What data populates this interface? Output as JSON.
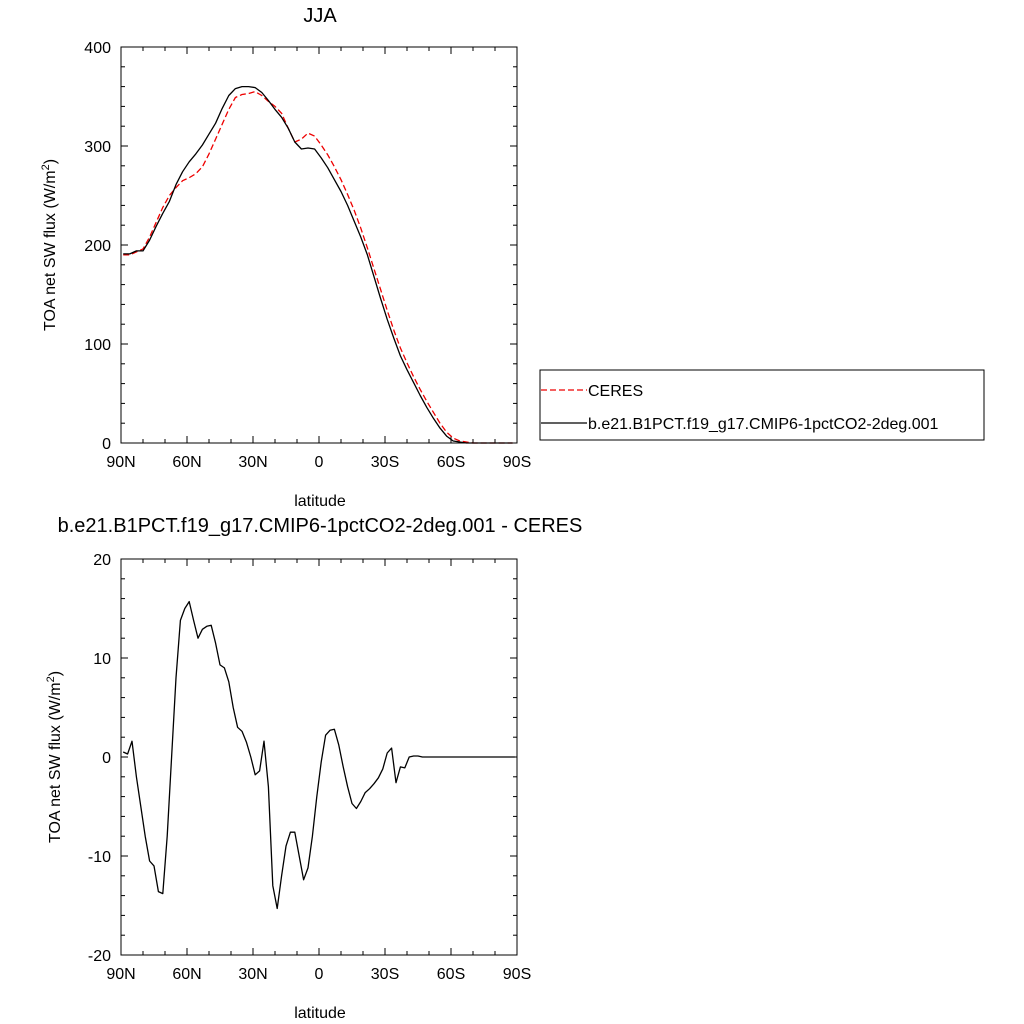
{
  "chart_data": [
    {
      "type": "line",
      "title": "JJA",
      "xlabel": "latitude",
      "ylabel_main": "TOA net SW flux (W/m",
      "ylabel_sup": "2",
      "ylabel_end": ")",
      "xlim": [
        90,
        -90
      ],
      "ylim": [
        0,
        400
      ],
      "x_ticks": [
        90,
        60,
        30,
        0,
        -30,
        -60,
        -90
      ],
      "x_tick_labels": [
        "90N",
        "60N",
        "30N",
        "0",
        "30S",
        "60S",
        "90S"
      ],
      "y_ticks": [
        0,
        100,
        200,
        300,
        400
      ],
      "y_tick_labels": [
        "0",
        "100",
        "200",
        "300",
        "400"
      ],
      "legend_position": "right",
      "series": [
        {
          "name": "CERES",
          "color": "#ee0000",
          "dash": true,
          "x": [
            89,
            86,
            83,
            80,
            77,
            74,
            71,
            68,
            65,
            62,
            59,
            56,
            53,
            50,
            47,
            44,
            41,
            38,
            35,
            32,
            29,
            26,
            23,
            20,
            17,
            14,
            11,
            8,
            5,
            2,
            -1,
            -4,
            -7,
            -10,
            -13,
            -16,
            -19,
            -22,
            -25,
            -28,
            -31,
            -34,
            -37,
            -40,
            -43,
            -46,
            -49,
            -52,
            -55,
            -58,
            -61,
            -64,
            -67,
            -70,
            -73,
            -76,
            -79,
            -82,
            -85,
            -88
          ],
          "values": [
            190,
            190,
            193,
            196,
            208,
            223,
            238,
            250,
            258,
            265,
            268,
            272,
            279,
            292,
            307,
            322,
            337,
            349,
            352,
            353,
            355,
            351,
            345,
            340,
            333,
            318,
            304,
            307,
            313,
            310,
            301,
            291,
            279,
            266,
            251,
            235,
            217,
            197,
            176,
            155,
            134,
            114,
            96,
            81,
            67,
            54,
            42,
            31,
            20,
            11,
            5,
            2,
            1,
            0,
            0,
            0,
            0,
            0,
            0,
            0
          ]
        },
        {
          "name": "b.e21.B1PCT.f19_g17.CMIP6-1pctCO2-2deg.001",
          "color": "#000000",
          "dash": false,
          "x": [
            89,
            86,
            83,
            80,
            77,
            74,
            71,
            68,
            65,
            62,
            59,
            56,
            53,
            50,
            47,
            44,
            41,
            38,
            35,
            32,
            29,
            26,
            23,
            20,
            17,
            14,
            11,
            8,
            5,
            2,
            -1,
            -4,
            -7,
            -10,
            -13,
            -16,
            -19,
            -22,
            -25,
            -28,
            -31,
            -34,
            -37,
            -40,
            -43,
            -46,
            -49,
            -52,
            -55,
            -58,
            -61,
            -64,
            -67,
            -70,
            -73,
            -76,
            -79,
            -82,
            -85,
            -88
          ],
          "values": [
            191,
            191,
            194,
            194,
            205,
            219,
            232,
            244,
            261,
            274,
            284,
            292,
            301,
            312,
            323,
            338,
            351,
            358,
            360,
            360,
            359,
            354,
            346,
            337,
            329,
            318,
            304,
            297,
            298,
            297,
            288,
            278,
            266,
            254,
            240,
            224,
            208,
            190,
            168,
            146,
            125,
            106,
            88,
            74,
            61,
            48,
            36,
            25,
            15,
            7,
            2,
            1,
            0,
            0,
            0,
            0,
            0,
            0,
            0,
            0
          ]
        }
      ]
    },
    {
      "type": "line",
      "title": "b.e21.B1PCT.f19_g17.CMIP6-1pctCO2-2deg.001 - CERES",
      "xlabel": "latitude",
      "ylabel_main": "TOA net SW flux (W/m",
      "ylabel_sup": "2",
      "ylabel_end": ")",
      "xlim": [
        90,
        -90
      ],
      "ylim": [
        -20,
        20
      ],
      "x_ticks": [
        90,
        60,
        30,
        0,
        -30,
        -60,
        -90
      ],
      "x_tick_labels": [
        "90N",
        "60N",
        "30N",
        "0",
        "30S",
        "60S",
        "90S"
      ],
      "y_ticks": [
        -20,
        -10,
        0,
        10,
        20
      ],
      "y_tick_labels": [
        "-20",
        "-10",
        "0",
        "10",
        "20"
      ],
      "series": [
        {
          "name": "",
          "color": "#000000",
          "dash": false,
          "x": [
            89,
            87,
            85,
            83,
            81,
            79,
            77,
            75,
            73,
            71,
            69,
            67,
            65,
            63,
            61,
            59,
            57,
            55,
            53,
            51,
            49,
            47,
            45,
            43,
            41,
            39,
            37,
            35,
            33,
            31,
            29,
            27,
            25,
            23,
            21,
            19,
            17,
            15,
            13,
            11,
            9,
            7,
            5,
            3,
            1,
            -1,
            -3,
            -5,
            -7,
            -9,
            -11,
            -13,
            -15,
            -17,
            -19,
            -21,
            -23,
            -25,
            -27,
            -29,
            -31,
            -33,
            -35,
            -37,
            -39,
            -41,
            -43,
            -45,
            -47,
            -49,
            -51,
            -53,
            -55,
            -57,
            -59,
            -61,
            -63,
            -65,
            -67,
            -69,
            -71,
            -73,
            -75,
            -77,
            -79,
            -81,
            -83,
            -85,
            -87,
            -89
          ],
          "values": [
            0.5,
            0.3,
            1.6,
            -2,
            -5,
            -8,
            -10.5,
            -11,
            -13.6,
            -13.8,
            -8,
            0,
            8,
            13.8,
            15,
            15.7,
            13.8,
            12,
            12.9,
            13.2,
            13.3,
            11.5,
            9.3,
            9,
            7.6,
            5,
            3,
            2.6,
            1.5,
            0,
            -1.8,
            -1.4,
            1.6,
            -3,
            -13,
            -15.3,
            -12,
            -9,
            -7.6,
            -7.6,
            -10,
            -12.4,
            -11.2,
            -8,
            -4,
            -0.5,
            2.2,
            2.7,
            2.8,
            1.2,
            -1,
            -3,
            -4.7,
            -5.2,
            -4.5,
            -3.6,
            -3.2,
            -2.7,
            -2.1,
            -1.2,
            0.4,
            0.9,
            -2.6,
            -1,
            -1.1,
            0,
            0.1,
            0.1,
            0,
            0,
            0,
            0,
            0,
            0,
            0,
            0,
            0,
            0,
            0,
            0,
            0,
            0,
            0,
            0,
            0,
            0,
            0,
            0,
            0,
            0
          ]
        }
      ]
    }
  ]
}
